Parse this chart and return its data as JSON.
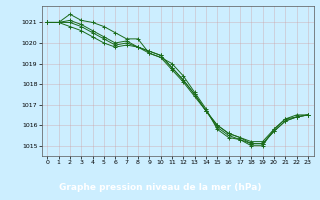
{
  "xlabel": "Graphe pression niveau de la mer (hPa)",
  "bg_color": "#cceeff",
  "plot_bg_color": "#cceeff",
  "grid_color": "#aacccc",
  "line_color": "#1a6b1a",
  "marker_color": "#1a6b1a",
  "label_bg_color": "#2d6b2d",
  "label_fg_color": "#ffffff",
  "xlim": [
    -0.5,
    23.5
  ],
  "ylim": [
    1014.5,
    1021.8
  ],
  "yticks": [
    1015,
    1016,
    1017,
    1018,
    1019,
    1020,
    1021
  ],
  "xticks": [
    0,
    1,
    2,
    3,
    4,
    5,
    6,
    7,
    8,
    9,
    10,
    11,
    12,
    13,
    14,
    15,
    16,
    17,
    18,
    19,
    20,
    21,
    22,
    23
  ],
  "xtick_labels": [
    "0",
    "1",
    "2",
    "3",
    "4",
    "5",
    "6",
    "7",
    "8",
    "9",
    "10",
    "11",
    "12",
    "13",
    "14",
    "15",
    "16",
    "17",
    "18",
    "19",
    "20",
    "21",
    "22",
    "23"
  ],
  "lines": [
    [
      1021.0,
      1021.0,
      1021.4,
      1021.1,
      1021.0,
      1020.8,
      1020.5,
      1020.2,
      1020.2,
      1019.5,
      1019.3,
      1019.0,
      1018.4,
      1017.6,
      1016.8,
      1015.8,
      1015.4,
      1015.3,
      1015.0,
      1015.0,
      1015.8,
      1016.3,
      1016.5,
      1016.5
    ],
    [
      1021.0,
      1021.0,
      1021.1,
      1020.9,
      1020.6,
      1020.3,
      1020.0,
      1020.1,
      1019.8,
      1019.5,
      1019.3,
      1018.7,
      1018.1,
      1017.4,
      1016.7,
      1015.9,
      1015.5,
      1015.3,
      1015.1,
      1015.1,
      1015.7,
      1016.2,
      1016.4,
      1016.5
    ],
    [
      1021.0,
      1021.0,
      1021.0,
      1020.8,
      1020.5,
      1020.2,
      1019.9,
      1020.0,
      1019.8,
      1019.6,
      1019.4,
      1018.8,
      1018.2,
      1017.5,
      1016.7,
      1016.0,
      1015.6,
      1015.4,
      1015.2,
      1015.2,
      1015.8,
      1016.3,
      1016.4,
      1016.5
    ],
    [
      1021.0,
      1021.0,
      1020.8,
      1020.6,
      1020.3,
      1020.0,
      1019.8,
      1019.9,
      1019.8,
      1019.6,
      1019.4,
      1018.8,
      1018.2,
      1017.5,
      1016.7,
      1016.0,
      1015.6,
      1015.4,
      1015.1,
      1015.1,
      1015.7,
      1016.2,
      1016.4,
      1016.5
    ]
  ]
}
